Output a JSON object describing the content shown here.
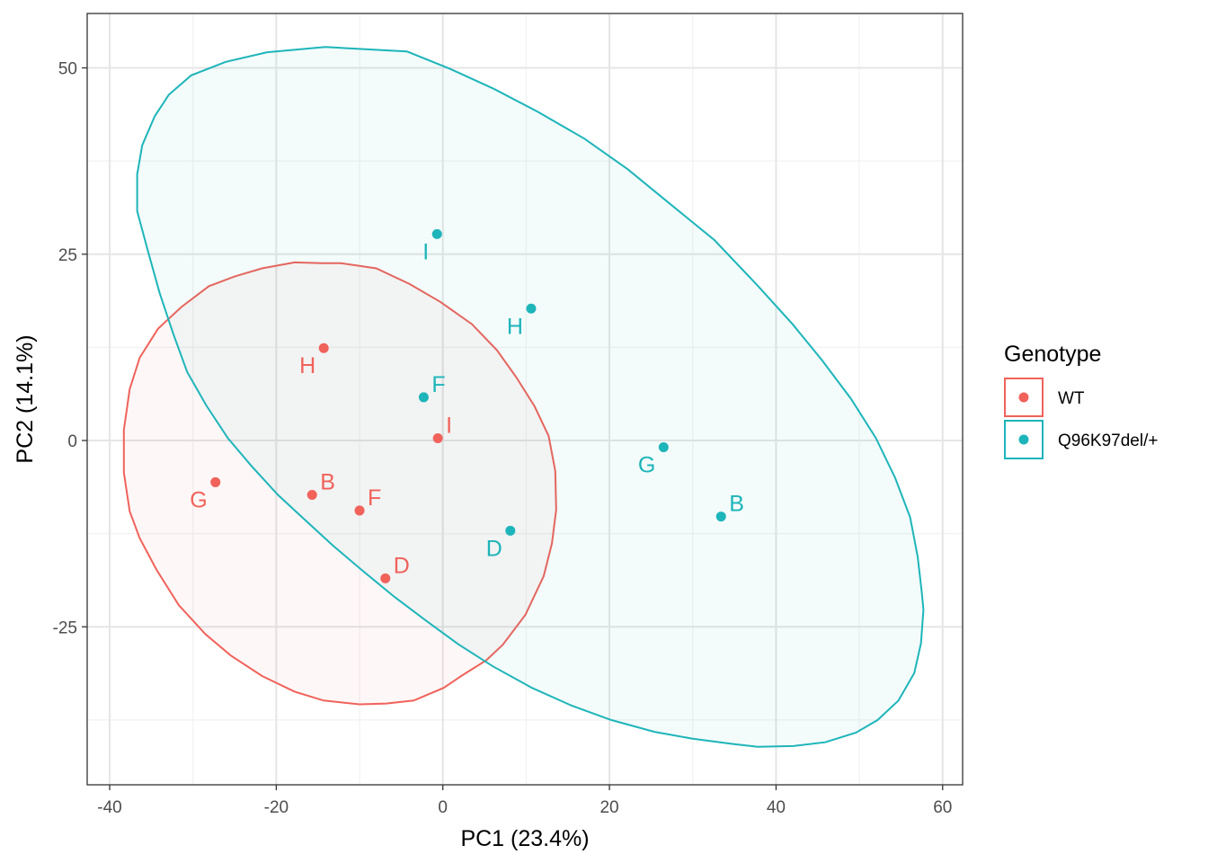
{
  "colors": {
    "wt": "#F0625A",
    "mut": "#1DB5BA",
    "grid_major": "#e5e5e5",
    "grid_minor": "#f2f2f2",
    "panel_border": "#333333"
  },
  "chart_data": {
    "type": "scatter",
    "title": "",
    "xlabel": "PC1 (23.4%)",
    "ylabel": "PC2 (14.1%)",
    "xlim": [
      -42.7,
      62.4
    ],
    "ylim": [
      -46.2,
      57.3
    ],
    "x_ticks": [
      -40,
      -20,
      0,
      20,
      40,
      60
    ],
    "y_ticks": [
      -25,
      0,
      25,
      50
    ],
    "x_tick_labels": [
      "-40",
      "-20",
      "0",
      "20",
      "40",
      "60"
    ],
    "y_tick_labels": [
      "-25",
      "0",
      "25",
      "50"
    ],
    "grid": true,
    "legend": {
      "title": "Genotype",
      "position": "right",
      "entries": [
        "WT",
        "Q96K97del/+"
      ]
    },
    "series": [
      {
        "name": "WT",
        "color": "#F0625A",
        "points": [
          {
            "label": "B",
            "x": -15.7,
            "y": -7.3,
            "label_side": "right"
          },
          {
            "label": "D",
            "x": -6.9,
            "y": -18.5,
            "label_side": "right"
          },
          {
            "label": "F",
            "x": -10.0,
            "y": -9.4,
            "label_side": "right"
          },
          {
            "label": "G",
            "x": -27.3,
            "y": -5.6,
            "label_side": "left"
          },
          {
            "label": "H",
            "x": -14.3,
            "y": 12.4,
            "label_side": "left"
          },
          {
            "label": "I",
            "x": -0.6,
            "y": 0.3,
            "label_side": "right"
          }
        ],
        "ellipse": [
          [
            -14.5,
            23.8
          ],
          [
            -12.3,
            23.8
          ],
          [
            -8.0,
            23.1
          ],
          [
            -4.0,
            21.0
          ],
          [
            -0.3,
            18.6
          ],
          [
            3.5,
            15.6
          ],
          [
            6.5,
            12.1
          ],
          [
            8.8,
            8.5
          ],
          [
            11.0,
            4.6
          ],
          [
            12.7,
            0.6
          ],
          [
            13.5,
            -4.1
          ],
          [
            13.6,
            -9.3
          ],
          [
            13.1,
            -13.8
          ],
          [
            12.1,
            -18.2
          ],
          [
            9.9,
            -23.4
          ],
          [
            7.2,
            -27.4
          ],
          [
            5.2,
            -29.5
          ],
          [
            2.2,
            -31.6
          ],
          [
            0.1,
            -33.2
          ],
          [
            -3.5,
            -34.9
          ],
          [
            -6.8,
            -35.3
          ],
          [
            -10.0,
            -35.4
          ],
          [
            -14.3,
            -34.9
          ],
          [
            -17.8,
            -33.7
          ],
          [
            -21.7,
            -31.6
          ],
          [
            -25.4,
            -28.9
          ],
          [
            -28.5,
            -26.0
          ],
          [
            -31.7,
            -22.1
          ],
          [
            -34.4,
            -17.3
          ],
          [
            -36.4,
            -13.1
          ],
          [
            -37.6,
            -9.5
          ],
          [
            -38.3,
            -4.3
          ],
          [
            -38.3,
            1.4
          ],
          [
            -37.6,
            6.9
          ],
          [
            -36.4,
            11.1
          ],
          [
            -34.2,
            15.0
          ],
          [
            -31.4,
            17.9
          ],
          [
            -28.1,
            20.7
          ],
          [
            -25.0,
            22.0
          ],
          [
            -21.7,
            23.1
          ],
          [
            -17.8,
            23.9
          ],
          [
            -14.5,
            23.8
          ]
        ]
      },
      {
        "name": "Q96K97del/+",
        "color": "#1DB5BA",
        "points": [
          {
            "label": "B",
            "x": 33.4,
            "y": -10.2,
            "label_side": "right"
          },
          {
            "label": "D",
            "x": 8.1,
            "y": -12.1,
            "label_side": "left"
          },
          {
            "label": "F",
            "x": -2.3,
            "y": 5.8,
            "label_side": "right"
          },
          {
            "label": "G",
            "x": 26.5,
            "y": -0.9,
            "label_side": "left"
          },
          {
            "label": "H",
            "x": 10.6,
            "y": 17.7,
            "label_side": "left"
          },
          {
            "label": "I",
            "x": -0.7,
            "y": 27.7,
            "label_side": "left"
          }
        ],
        "ellipse": [
          [
            -14.1,
            52.8
          ],
          [
            -4.3,
            52.2
          ],
          [
            0.8,
            49.9
          ],
          [
            6.1,
            47.2
          ],
          [
            11.4,
            44.1
          ],
          [
            17.0,
            40.5
          ],
          [
            22.2,
            36.4
          ],
          [
            27.0,
            32.0
          ],
          [
            32.6,
            26.9
          ],
          [
            37.7,
            20.9
          ],
          [
            42.0,
            15.6
          ],
          [
            45.5,
            10.8
          ],
          [
            49.0,
            5.6
          ],
          [
            52.0,
            0.3
          ],
          [
            54.3,
            -5.0
          ],
          [
            56.1,
            -10.3
          ],
          [
            57.0,
            -15.6
          ],
          [
            57.5,
            -20.4
          ],
          [
            57.7,
            -22.7
          ],
          [
            57.4,
            -27.2
          ],
          [
            56.6,
            -31.2
          ],
          [
            54.7,
            -34.9
          ],
          [
            52.2,
            -37.5
          ],
          [
            49.6,
            -39.2
          ],
          [
            45.9,
            -40.5
          ],
          [
            42.1,
            -41.0
          ],
          [
            37.8,
            -41.1
          ],
          [
            34.6,
            -40.7
          ],
          [
            29.9,
            -40.0
          ],
          [
            25.4,
            -39.1
          ],
          [
            20.2,
            -37.5
          ],
          [
            15.5,
            -35.6
          ],
          [
            10.7,
            -33.2
          ],
          [
            6.0,
            -30.3
          ],
          [
            1.8,
            -27.3
          ],
          [
            -2.0,
            -24.2
          ],
          [
            -5.8,
            -21.0
          ],
          [
            -9.6,
            -17.5
          ],
          [
            -13.2,
            -14.1
          ],
          [
            -16.7,
            -10.5
          ],
          [
            -19.8,
            -7.3
          ],
          [
            -23.0,
            -3.4
          ],
          [
            -25.8,
            0.3
          ],
          [
            -28.4,
            4.7
          ],
          [
            -30.7,
            9.2
          ],
          [
            -32.4,
            14.4
          ],
          [
            -34.0,
            19.8
          ],
          [
            -35.5,
            25.8
          ],
          [
            -36.7,
            30.8
          ],
          [
            -36.7,
            35.7
          ],
          [
            -36.1,
            39.6
          ],
          [
            -34.6,
            43.5
          ],
          [
            -32.9,
            46.4
          ],
          [
            -30.2,
            49.0
          ],
          [
            -26.1,
            50.8
          ],
          [
            -21.1,
            52.1
          ],
          [
            -14.1,
            52.8
          ]
        ]
      }
    ]
  }
}
